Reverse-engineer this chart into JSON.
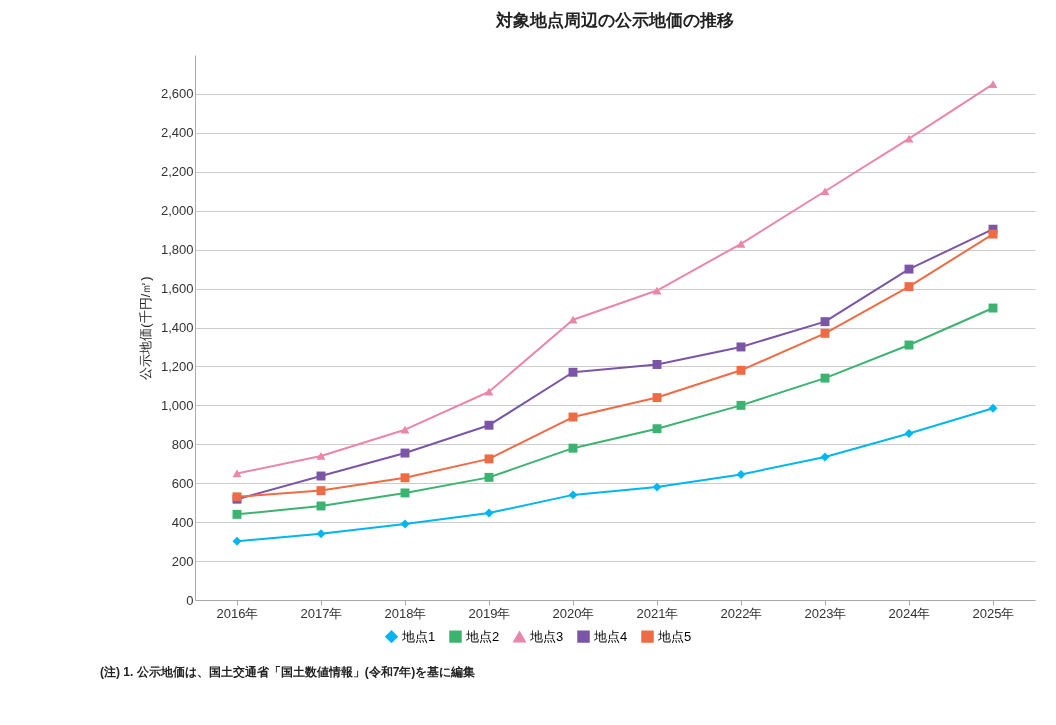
{
  "chart_data": {
    "type": "line",
    "title": "対象地点周辺の公示地価の推移",
    "ylabel": "公示地価(千円/㎡)",
    "categories": [
      "2016年",
      "2017年",
      "2018年",
      "2019年",
      "2020年",
      "2021年",
      "2022年",
      "2023年",
      "2024年",
      "2025年"
    ],
    "series": [
      {
        "name": "地点1",
        "color": "#00b6ef",
        "marker": "diamond",
        "values": [
          302,
          340,
          390,
          447,
          540,
          580,
          645,
          735,
          855,
          985
        ]
      },
      {
        "name": "地点2",
        "color": "#3cb371",
        "marker": "square",
        "values": [
          440,
          483,
          550,
          630,
          780,
          880,
          1000,
          1140,
          1310,
          1500
        ]
      },
      {
        "name": "地点3",
        "color": "#ea86a8",
        "marker": "triangle",
        "values": [
          650,
          740,
          875,
          1070,
          1440,
          1590,
          1830,
          2100,
          2370,
          2650
        ]
      },
      {
        "name": "地点4",
        "color": "#7b55a6",
        "marker": "square",
        "values": [
          518,
          637,
          755,
          898,
          1170,
          1210,
          1300,
          1430,
          1700,
          1905
        ]
      },
      {
        "name": "地点5",
        "color": "#ee6c45",
        "marker": "square",
        "values": [
          530,
          562,
          628,
          725,
          940,
          1040,
          1180,
          1370,
          1610,
          1880
        ]
      }
    ],
    "ylim": [
      0,
      2800
    ],
    "yticks": [
      0,
      200,
      400,
      600,
      800,
      {
        "value": 1000,
        "label": "1,000"
      },
      {
        "value": 1200,
        "label": "1,200"
      },
      {
        "value": 1400,
        "label": "1,400"
      },
      {
        "value": 1600,
        "label": "1,600"
      },
      {
        "value": 1800,
        "label": "1,800"
      },
      {
        "value": 2000,
        "label": "2,000"
      },
      {
        "value": 2200,
        "label": "2,200"
      },
      {
        "value": 2400,
        "label": "2,400"
      },
      {
        "value": 2600,
        "label": "2,600"
      }
    ],
    "grid": "y",
    "legend": "bottom",
    "line_style": "solid",
    "annotations": [
      "(注) 1. 公示地価は、国土交通省「国土数値情報」(令和7年)を基に編集"
    ]
  }
}
